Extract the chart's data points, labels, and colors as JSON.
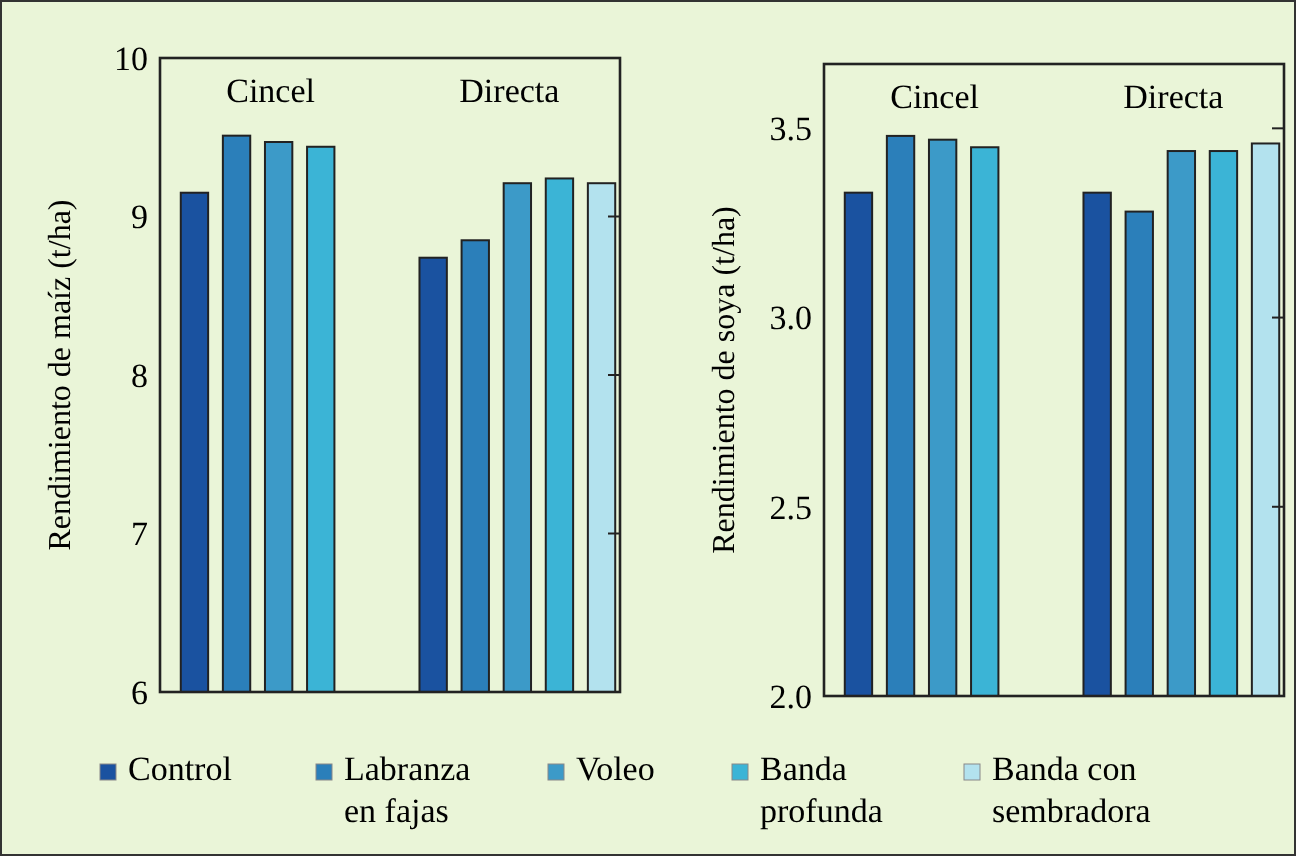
{
  "chart_data": [
    {
      "type": "bar",
      "ylabel": "Rendimiento de maíz (t/ha)",
      "categories": [
        "Cincel",
        "Directa"
      ],
      "ylim": [
        6,
        10
      ],
      "yticks": [
        6,
        7,
        8,
        9,
        10
      ],
      "legend": "bottom",
      "series": [
        {
          "name": "Control",
          "color": "#1a52a0",
          "values": [
            9.15,
            8.74
          ]
        },
        {
          "name": "Labranza en fajas",
          "color": "#2b7fba",
          "values": [
            9.51,
            8.85
          ]
        },
        {
          "name": "Voleo",
          "color": "#3c9ac8",
          "values": [
            9.47,
            9.21
          ]
        },
        {
          "name": "Banda profunda",
          "color": "#3bb4d6",
          "values": [
            9.44,
            9.24
          ]
        },
        {
          "name": "Banda con sembradora",
          "color": "#b3e2ee",
          "values": [
            null,
            9.21
          ]
        }
      ]
    },
    {
      "type": "bar",
      "ylabel": "Rendimiento de soya (t/ha)",
      "categories": [
        "Cincel",
        "Directa"
      ],
      "ylim": [
        2,
        3.67
      ],
      "yticks": [
        {
          "value": 2,
          "label": "2.0"
        },
        2.5,
        {
          "value": 3,
          "label": "3.0"
        },
        3.5
      ],
      "series": [
        {
          "color": "#1a52a0",
          "values": [
            3.33,
            3.33
          ]
        },
        {
          "color": "#2b7fba",
          "values": [
            3.48,
            3.28
          ]
        },
        {
          "color": "#3c9ac8",
          "values": [
            3.47,
            3.44
          ]
        },
        {
          "color": "#3bb4d6",
          "values": [
            3.45,
            3.44
          ]
        },
        {
          "color": "#b3e2ee",
          "values": [
            null,
            3.46
          ]
        }
      ]
    }
  ]
}
